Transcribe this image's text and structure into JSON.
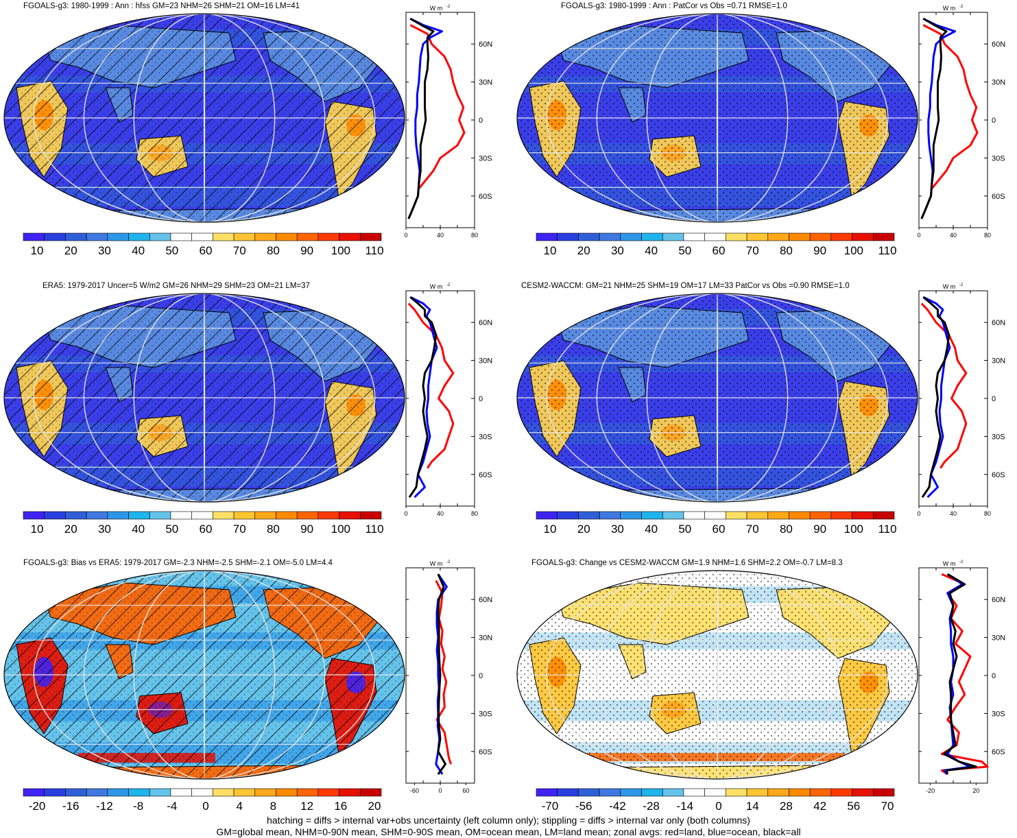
{
  "colors": {
    "abs_scale": [
      "#3f23f2",
      "#2a3fe0",
      "#2f5fd8",
      "#3f78e0",
      "#2e96e8",
      "#1fb4ec",
      "#64c3ea",
      "#ffffff",
      "#ffffff",
      "#ffe066",
      "#ffc533",
      "#ffa81a",
      "#ff8a00",
      "#ff6400",
      "#ff3a00",
      "#e81000",
      "#c80000"
    ],
    "diff_scale": [
      "#3f23f2",
      "#2a3fe0",
      "#2f5fd8",
      "#3f78e0",
      "#2e96e8",
      "#1fb4ec",
      "#64c3ea",
      "#ffffff",
      "#ffffff",
      "#ffe066",
      "#ffc533",
      "#ffa81a",
      "#ff8a00",
      "#ff6400",
      "#ff3a00",
      "#e81000",
      "#c80000"
    ],
    "land_line": "#ff0000",
    "ocean_line": "#0000ff",
    "all_line": "#000000"
  },
  "units": "W m",
  "units_exp": "-2",
  "lat_labels": [
    "60N",
    "30N",
    "0",
    "30S",
    "60S"
  ],
  "chart_data": [
    {
      "type": "map",
      "title": "FGOALS-g3: 1980-1999 : Ann : hfss GM=23 NHM=26 SHM=21 OM=16 LM=41",
      "colorbar_labels": [
        "10",
        "20",
        "30",
        "40",
        "50",
        "60",
        "70",
        "80",
        "90",
        "100",
        "110"
      ],
      "zonal_xticks": [
        "0",
        "40",
        "80"
      ],
      "zonal_xlim": [
        0,
        80
      ],
      "hatching": true,
      "stippling": false,
      "field": "abs",
      "zonal_series": [
        {
          "color": "land",
          "lat": [
            75,
            68,
            60,
            50,
            40,
            30,
            20,
            10,
            0,
            -10,
            -20,
            -30,
            -40,
            -50,
            -55
          ],
          "values": [
            5,
            25,
            30,
            45,
            52,
            55,
            60,
            67,
            62,
            68,
            60,
            40,
            32,
            20,
            14
          ]
        },
        {
          "color": "ocean",
          "lat": [
            80,
            75,
            70,
            65,
            60,
            50,
            40,
            30,
            20,
            10,
            0,
            -10,
            -20,
            -30,
            -40,
            -50,
            -60,
            -70,
            -78
          ],
          "values": [
            5,
            20,
            42,
            28,
            20,
            17,
            16,
            15,
            13,
            13,
            11,
            11,
            12,
            14,
            16,
            15,
            14,
            8,
            3
          ]
        },
        {
          "color": "all",
          "lat": [
            80,
            75,
            70,
            65,
            60,
            50,
            40,
            30,
            20,
            10,
            0,
            -10,
            -20,
            -30,
            -40,
            -50,
            -60,
            -70,
            -78
          ],
          "values": [
            5,
            18,
            32,
            25,
            25,
            26,
            25,
            22,
            22,
            22,
            23,
            20,
            17,
            17,
            17,
            15,
            14,
            8,
            3
          ]
        }
      ]
    },
    {
      "type": "map",
      "title": "FGOALS-g3: 1980-1999 : Ann : PatCor vs Obs =0.71 RMSE=1.0",
      "colorbar_labels": [
        "10",
        "20",
        "30",
        "40",
        "50",
        "60",
        "70",
        "80",
        "90",
        "100",
        "110"
      ],
      "zonal_xticks": [
        "0",
        "40",
        "80"
      ],
      "zonal_xlim": [
        0,
        80
      ],
      "hatching": false,
      "stippling": true,
      "field": "abs",
      "zonal_series": [
        {
          "color": "land",
          "lat": [
            75,
            68,
            60,
            50,
            40,
            30,
            20,
            10,
            0,
            -10,
            -20,
            -30,
            -40,
            -50,
            -55
          ],
          "values": [
            5,
            25,
            30,
            45,
            52,
            55,
            60,
            67,
            62,
            68,
            60,
            40,
            32,
            20,
            14
          ]
        },
        {
          "color": "ocean",
          "lat": [
            80,
            75,
            70,
            65,
            60,
            50,
            40,
            30,
            20,
            10,
            0,
            -10,
            -20,
            -30,
            -40,
            -50,
            -60,
            -70,
            -78
          ],
          "values": [
            5,
            20,
            42,
            28,
            20,
            17,
            16,
            15,
            13,
            13,
            11,
            11,
            12,
            14,
            16,
            15,
            14,
            8,
            3
          ]
        },
        {
          "color": "all",
          "lat": [
            80,
            75,
            70,
            65,
            60,
            50,
            40,
            30,
            20,
            10,
            0,
            -10,
            -20,
            -30,
            -40,
            -50,
            -60,
            -70,
            -78
          ],
          "values": [
            5,
            18,
            32,
            25,
            25,
            26,
            25,
            22,
            22,
            22,
            23,
            20,
            17,
            17,
            17,
            15,
            14,
            8,
            3
          ]
        }
      ]
    },
    {
      "type": "map",
      "title": "ERA5: 1979-2017 Uncer=5 W/m2 GM=26 NHM=29 SHM=23 OM=21 LM=37",
      "colorbar_labels": [
        "10",
        "20",
        "30",
        "40",
        "50",
        "60",
        "70",
        "80",
        "90",
        "100",
        "110"
      ],
      "zonal_xticks": [
        "0",
        "40",
        "80"
      ],
      "zonal_xlim": [
        0,
        80
      ],
      "hatching": true,
      "stippling": false,
      "field": "abs",
      "zonal_series": [
        {
          "color": "land",
          "lat": [
            75,
            70,
            65,
            60,
            50,
            40,
            30,
            20,
            10,
            0,
            -10,
            -20,
            -30,
            -40,
            -50,
            -55
          ],
          "values": [
            3,
            10,
            15,
            20,
            35,
            42,
            45,
            55,
            45,
            38,
            50,
            55,
            50,
            45,
            30,
            25
          ]
        },
        {
          "color": "ocean",
          "lat": [
            80,
            75,
            70,
            65,
            60,
            50,
            40,
            30,
            20,
            10,
            0,
            -10,
            -20,
            -30,
            -40,
            -50,
            -60,
            -70,
            -78
          ],
          "values": [
            5,
            20,
            28,
            24,
            28,
            32,
            36,
            30,
            28,
            26,
            26,
            24,
            25,
            28,
            24,
            20,
            14,
            22,
            10
          ]
        },
        {
          "color": "all",
          "lat": [
            80,
            75,
            70,
            65,
            60,
            50,
            40,
            30,
            20,
            10,
            0,
            -10,
            -20,
            -30,
            -40,
            -50,
            -60,
            -70,
            -78
          ],
          "values": [
            5,
            14,
            22,
            22,
            30,
            35,
            33,
            30,
            22,
            20,
            22,
            20,
            22,
            25,
            22,
            18,
            14,
            12,
            4
          ]
        }
      ]
    },
    {
      "type": "map",
      "title": "CESM2-WACCM: GM=21 NHM=25 SHM=19 OM=17 LM=33 PatCor vs Obs =0.90 RMSE=1.0",
      "colorbar_labels": [
        "10",
        "20",
        "30",
        "40",
        "50",
        "60",
        "70",
        "80",
        "90",
        "100",
        "110"
      ],
      "zonal_xticks": [
        "0",
        "40",
        "80"
      ],
      "zonal_xlim": [
        0,
        80
      ],
      "hatching": false,
      "stippling": true,
      "field": "abs",
      "zonal_series": [
        {
          "color": "land",
          "lat": [
            75,
            70,
            65,
            60,
            50,
            40,
            30,
            20,
            10,
            0,
            -10,
            -20,
            -30,
            -40,
            -50,
            -55
          ],
          "values": [
            3,
            10,
            15,
            20,
            35,
            42,
            45,
            55,
            45,
            38,
            50,
            55,
            50,
            45,
            30,
            25
          ]
        },
        {
          "color": "ocean",
          "lat": [
            80,
            75,
            70,
            65,
            60,
            50,
            40,
            30,
            20,
            10,
            0,
            -10,
            -20,
            -30,
            -40,
            -50,
            -60,
            -70,
            -78
          ],
          "values": [
            5,
            20,
            28,
            24,
            28,
            32,
            36,
            30,
            28,
            26,
            26,
            24,
            25,
            28,
            24,
            20,
            14,
            22,
            10
          ]
        },
        {
          "color": "all",
          "lat": [
            80,
            75,
            70,
            65,
            60,
            50,
            40,
            30,
            20,
            10,
            0,
            -10,
            -20,
            -30,
            -40,
            -50,
            -60,
            -70,
            -78
          ],
          "values": [
            5,
            14,
            22,
            22,
            30,
            35,
            33,
            30,
            22,
            20,
            22,
            20,
            22,
            25,
            22,
            18,
            14,
            12,
            4
          ]
        }
      ]
    },
    {
      "type": "map",
      "title": "FGOALS-g3: Bias vs ERA5: 1979-2017 GM=-2.3 NHM=-2.5 SHM=-2.1 OM=-5.0 LM=4.4",
      "colorbar_labels": [
        "-20",
        "-16",
        "-12",
        "-8",
        "-4",
        "0",
        "4",
        "8",
        "12",
        "16",
        "20"
      ],
      "zonal_xticks": [
        "-60",
        "0",
        "60"
      ],
      "zonal_xlim": [
        -80,
        80
      ],
      "hatching": true,
      "stippling": false,
      "field": "bias",
      "zonal_series": [
        {
          "color": "land",
          "lat": [
            75,
            65,
            55,
            45,
            35,
            25,
            15,
            5,
            -5,
            -15,
            -25,
            -35,
            -45,
            -55,
            -65,
            -70
          ],
          "values": [
            -10,
            5,
            2,
            -3,
            5,
            2,
            10,
            5,
            14,
            8,
            10,
            -8,
            10,
            15,
            20,
            25
          ]
        },
        {
          "color": "ocean",
          "lat": [
            80,
            70,
            60,
            50,
            40,
            30,
            20,
            10,
            0,
            -10,
            -20,
            -30,
            -40,
            -50,
            -60,
            -70,
            -78
          ],
          "values": [
            -5,
            15,
            -5,
            -8,
            -8,
            -5,
            -8,
            -5,
            -5,
            -3,
            -6,
            -5,
            -6,
            -2,
            -5,
            -10,
            5
          ]
        },
        {
          "color": "all",
          "lat": [
            80,
            70,
            60,
            50,
            40,
            30,
            20,
            10,
            0,
            -10,
            -20,
            -30,
            -40,
            -50,
            -60,
            -70,
            -78
          ],
          "values": [
            -5,
            8,
            -3,
            -5,
            -3,
            -3,
            -3,
            -2,
            0,
            -2,
            -3,
            -4,
            -3,
            0,
            -5,
            12,
            -5
          ]
        }
      ]
    },
    {
      "type": "map",
      "title": "FGOALS-g3: Change vs CESM2-WACCM GM=1.9 NHM=1.6 SHM=2.2 OM=-0.7 LM=8.3",
      "colorbar_labels": [
        "-70",
        "-56",
        "-42",
        "-28",
        "-14",
        "0",
        "14",
        "28",
        "42",
        "56",
        "70"
      ],
      "zonal_xticks": [
        "-20",
        "20"
      ],
      "zonal_xlim": [
        -30,
        30
      ],
      "hatching": false,
      "stippling": true,
      "field": "change",
      "zonal_series": [
        {
          "color": "land",
          "lat": [
            80,
            72,
            65,
            55,
            45,
            35,
            25,
            15,
            5,
            -5,
            -15,
            -25,
            -35,
            -45,
            -55,
            -62,
            -68,
            -72,
            -75,
            -78
          ],
          "values": [
            -10,
            10,
            -5,
            3,
            -2,
            8,
            2,
            15,
            10,
            5,
            10,
            2,
            -5,
            5,
            3,
            -10,
            25,
            30,
            -10,
            -5
          ]
        },
        {
          "color": "ocean",
          "lat": [
            80,
            72,
            65,
            55,
            45,
            35,
            25,
            15,
            5,
            -5,
            -15,
            -25,
            -35,
            -45,
            -55,
            -62,
            -68,
            -72,
            -75,
            -78
          ],
          "values": [
            -5,
            8,
            -5,
            0,
            -3,
            -2,
            -2,
            0,
            0,
            -2,
            0,
            -3,
            -2,
            -1,
            0,
            -5,
            5,
            15,
            -8,
            -5
          ]
        },
        {
          "color": "all",
          "lat": [
            80,
            72,
            65,
            55,
            45,
            35,
            25,
            15,
            5,
            -5,
            -15,
            -25,
            -35,
            -45,
            -55,
            -62,
            -68,
            -72,
            -75,
            -78
          ],
          "values": [
            -5,
            10,
            -3,
            0,
            -2,
            2,
            0,
            3,
            0,
            -3,
            -2,
            -2,
            -2,
            0,
            2,
            -8,
            5,
            20,
            -6,
            -5
          ]
        }
      ]
    }
  ],
  "caption": {
    "line1": "hatching = diffs > internal var+obs uncertainty (left column only); stippling = diffs > internal var only (both columns)",
    "line2": "GM=global mean, NHM=0-90N mean, SHM=0-90S mean, OM=ocean mean, LM=land mean; zonal avgs: red=land, blue=ocean, black=all"
  }
}
